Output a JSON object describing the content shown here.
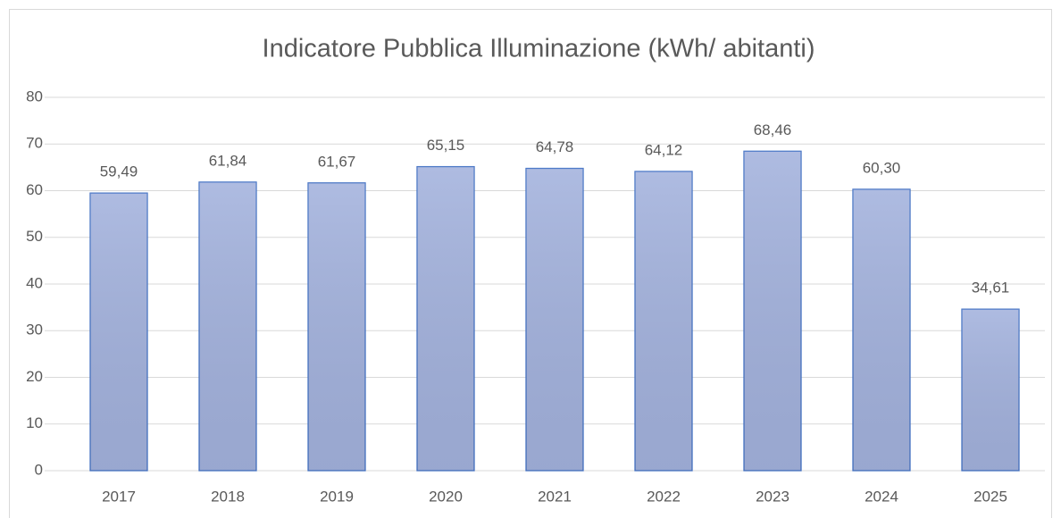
{
  "chart_data": {
    "type": "bar",
    "title": "Indicatore Pubblica Illuminazione (kWh/ abitanti)",
    "categories": [
      "2017",
      "2018",
      "2019",
      "2020",
      "2021",
      "2022",
      "2023",
      "2024",
      "2025"
    ],
    "values": [
      59.49,
      61.84,
      61.67,
      65.15,
      64.78,
      64.12,
      68.46,
      60.3,
      34.61
    ],
    "value_labels": [
      "59,49",
      "61,84",
      "61,67",
      "65,15",
      "64,78",
      "64,12",
      "68,46",
      "60,30",
      "34,61"
    ],
    "color": "#a3b2dd",
    "edge_color": "#4472c4",
    "ylim": [
      0,
      80
    ],
    "yticks": [
      0,
      10,
      20,
      30,
      40,
      50,
      60,
      70,
      80
    ],
    "grid": true
  }
}
